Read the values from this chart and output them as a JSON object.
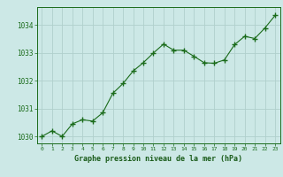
{
  "x": [
    0,
    1,
    2,
    3,
    4,
    5,
    6,
    7,
    8,
    9,
    10,
    11,
    12,
    13,
    14,
    15,
    16,
    17,
    18,
    19,
    20,
    21,
    22,
    23
  ],
  "y": [
    1030.0,
    1030.2,
    1030.0,
    1030.45,
    1030.6,
    1030.55,
    1030.85,
    1031.55,
    1031.9,
    1032.35,
    1032.65,
    1033.0,
    1033.32,
    1033.1,
    1033.1,
    1032.88,
    1032.65,
    1032.63,
    1032.75,
    1033.3,
    1033.6,
    1033.52,
    1033.9,
    1034.35
  ],
  "line_color": "#1a6b1a",
  "marker_color": "#1a6b1a",
  "bg_color": "#cce8e6",
  "grid_color": "#b0d0cc",
  "xlabel": "Graphe pression niveau de la mer (hPa)",
  "xlabel_color": "#1a5c1a",
  "tick_color": "#1a6b1a",
  "ylim": [
    1029.75,
    1034.65
  ],
  "yticks": [
    1030,
    1031,
    1032,
    1033,
    1034
  ],
  "xticks": [
    0,
    1,
    2,
    3,
    4,
    5,
    6,
    7,
    8,
    9,
    10,
    11,
    12,
    13,
    14,
    15,
    16,
    17,
    18,
    19,
    20,
    21,
    22,
    23
  ]
}
